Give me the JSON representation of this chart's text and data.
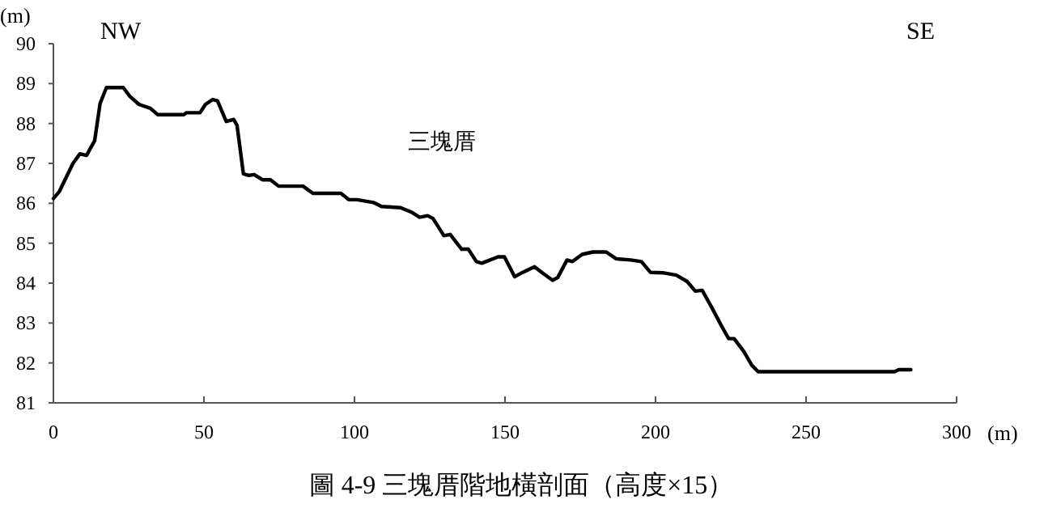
{
  "chart_data": {
    "type": "line",
    "title": "圖 4-9 三塊厝階地橫剖面（高度×15）",
    "xlabel": "(m)",
    "ylabel": "(m)",
    "annotations": [
      "NW",
      "SE",
      "三塊厝"
    ],
    "xlim": [
      0,
      300
    ],
    "xticks": [
      0,
      50,
      100,
      150,
      200,
      250,
      300
    ],
    "ylim": [
      81,
      90
    ],
    "yticks": [
      81,
      82,
      83,
      84,
      85,
      86,
      87,
      88,
      89,
      90
    ],
    "grid": false,
    "marker": "none",
    "line_style": "solid",
    "series": [
      {
        "color": "#000000",
        "x": [
          0,
          2,
          6.5,
          8.8,
          11,
          13.7,
          15.5,
          17.6,
          23.2,
          25.4,
          28.4,
          32.2,
          34.7,
          43.3,
          44.2,
          48.7,
          50.5,
          52.9,
          54.5,
          57.4,
          59.9,
          61,
          63.1,
          64.9,
          66.7,
          69.4,
          72.1,
          74.8,
          82.9,
          86.2,
          95.5,
          98.2,
          100.9,
          106.3,
          109,
          115.3,
          118.9,
          121.6,
          124.3,
          126.1,
          129.7,
          131.8,
          135.6,
          137.8,
          140.5,
          142.3,
          147.7,
          149.8,
          153.2,
          155.9,
          159.8,
          162.2,
          165.8,
          167.5,
          170.6,
          172.4,
          175.6,
          179.2,
          183.6,
          186.9,
          191.7,
          195.3,
          198.3,
          202.4,
          206.9,
          210.5,
          213.2,
          215.5,
          218.6,
          222.1,
          224.3,
          226.1,
          229.3,
          232,
          234.1,
          279.4,
          280.8,
          284.8
        ],
        "values": [
          86.12,
          86.3,
          87.0,
          87.24,
          87.2,
          87.57,
          88.5,
          88.9,
          88.9,
          88.68,
          88.48,
          88.38,
          88.22,
          88.22,
          88.27,
          88.27,
          88.48,
          88.6,
          88.57,
          88.05,
          88.1,
          87.95,
          86.74,
          86.7,
          86.72,
          86.59,
          86.59,
          86.43,
          86.43,
          86.25,
          86.25,
          86.09,
          86.09,
          86.02,
          85.92,
          85.89,
          85.78,
          85.65,
          85.69,
          85.62,
          85.19,
          85.22,
          84.85,
          84.85,
          84.54,
          84.5,
          84.66,
          84.66,
          84.16,
          84.27,
          84.41,
          84.27,
          84.07,
          84.14,
          84.58,
          84.54,
          84.72,
          84.78,
          84.78,
          84.61,
          84.58,
          84.54,
          84.27,
          84.26,
          84.2,
          84.04,
          83.8,
          83.82,
          83.4,
          82.9,
          82.61,
          82.61,
          82.29,
          81.94,
          81.78,
          81.78,
          81.83,
          81.83
        ]
      }
    ]
  }
}
